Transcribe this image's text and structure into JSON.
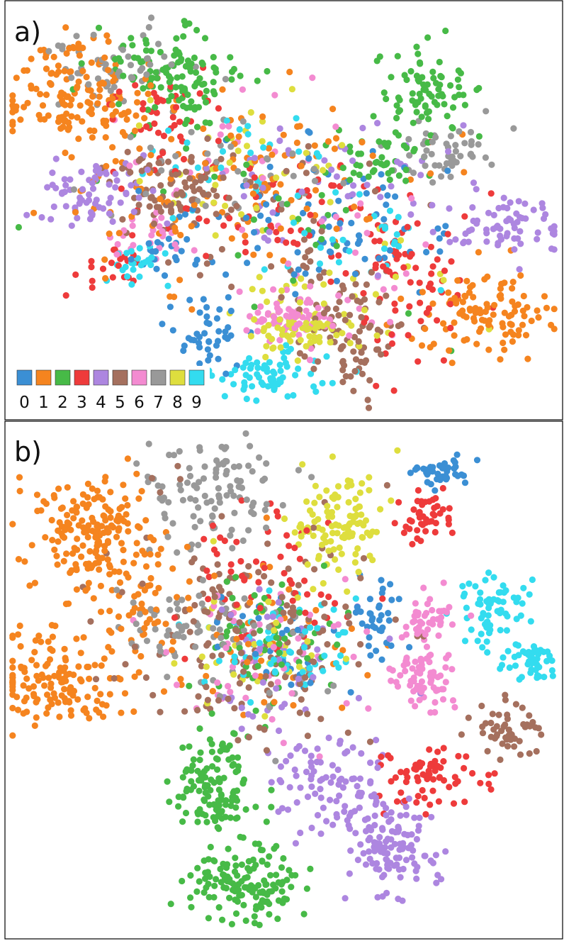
{
  "figure": {
    "panel_labels": [
      "a)",
      "b)"
    ],
    "legend": {
      "entries": [
        "0",
        "1",
        "2",
        "3",
        "4",
        "5",
        "6",
        "7",
        "8",
        "9"
      ],
      "colors": [
        "#3b8fd4",
        "#f5841f",
        "#47ba47",
        "#ee3b3b",
        "#ad86e0",
        "#a5705e",
        "#f38bd1",
        "#999999",
        "#dede3e",
        "#33dcef"
      ]
    }
  },
  "chart_data": [
    {
      "type": "scatter",
      "panel": "a)",
      "title": "",
      "xlabel": "",
      "ylabel": "",
      "axes_visible": false,
      "grid": false,
      "legend_placement": "bottom-left",
      "point_count_approx": 2000,
      "xlim": [
        0,
        100
      ],
      "ylim": [
        0,
        100
      ],
      "series": [
        {
          "name": "0",
          "color": "#3b8fd4",
          "clusters": [
            {
              "cx": 36,
              "cy": 17,
              "sx": 4,
              "sy": 6,
              "n": 45
            },
            {
              "cx": 62,
              "cy": 40,
              "sx": 8,
              "sy": 7,
              "n": 45
            },
            {
              "cx": 28,
              "cy": 40,
              "sx": 4,
              "sy": 3,
              "n": 20
            },
            {
              "cx": 50,
              "cy": 55,
              "sx": 15,
              "sy": 10,
              "n": 40
            }
          ]
        },
        {
          "name": "1",
          "color": "#f5841f",
          "clusters": [
            {
              "cx": 12,
              "cy": 78,
              "sx": 7,
              "sy": 6,
              "n": 150
            },
            {
              "cx": 86,
              "cy": 25,
              "sx": 6,
              "sy": 5,
              "n": 110
            },
            {
              "cx": 48,
              "cy": 58,
              "sx": 15,
              "sy": 10,
              "n": 80
            },
            {
              "cx": 30,
              "cy": 48,
              "sx": 12,
              "sy": 12,
              "n": 40
            }
          ]
        },
        {
          "name": "2",
          "color": "#47ba47",
          "clusters": [
            {
              "cx": 30,
              "cy": 82,
              "sx": 6,
              "sy": 6,
              "n": 120
            },
            {
              "cx": 76,
              "cy": 78,
              "sx": 4,
              "sy": 6,
              "n": 80
            },
            {
              "cx": 69,
              "cy": 62,
              "sx": 4,
              "sy": 4,
              "n": 40
            },
            {
              "cx": 50,
              "cy": 52,
              "sx": 15,
              "sy": 12,
              "n": 30
            }
          ]
        },
        {
          "name": "3",
          "color": "#ee3b3b",
          "clusters": [
            {
              "cx": 72,
              "cy": 34,
              "sx": 7,
              "sy": 10,
              "n": 80
            },
            {
              "cx": 44,
              "cy": 52,
              "sx": 12,
              "sy": 8,
              "n": 60
            },
            {
              "cx": 28,
              "cy": 73,
              "sx": 6,
              "sy": 6,
              "n": 40
            },
            {
              "cx": 17,
              "cy": 35,
              "sx": 4,
              "sy": 3,
              "n": 20
            }
          ]
        },
        {
          "name": "4",
          "color": "#ad86e0",
          "clusters": [
            {
              "cx": 14,
              "cy": 55,
              "sx": 5,
              "sy": 5,
              "n": 70
            },
            {
              "cx": 91,
              "cy": 46,
              "sx": 6,
              "sy": 4,
              "n": 70
            },
            {
              "cx": 57,
              "cy": 58,
              "sx": 14,
              "sy": 8,
              "n": 50
            }
          ]
        },
        {
          "name": "5",
          "color": "#a5705e",
          "clusters": [
            {
              "cx": 30,
              "cy": 56,
              "sx": 6,
              "sy": 5,
              "n": 80
            },
            {
              "cx": 63,
              "cy": 18,
              "sx": 4,
              "sy": 5,
              "n": 60
            },
            {
              "cx": 58,
              "cy": 30,
              "sx": 6,
              "sy": 6,
              "n": 40
            },
            {
              "cx": 48,
              "cy": 50,
              "sx": 12,
              "sy": 8,
              "n": 40
            }
          ]
        },
        {
          "name": "6",
          "color": "#f38bd1",
          "clusters": [
            {
              "cx": 52,
              "cy": 24,
              "sx": 5,
              "sy": 3,
              "n": 80
            },
            {
              "cx": 26,
              "cy": 44,
              "sx": 4,
              "sy": 4,
              "n": 30
            },
            {
              "cx": 40,
              "cy": 65,
              "sx": 10,
              "sy": 8,
              "n": 20
            },
            {
              "cx": 62,
              "cy": 40,
              "sx": 10,
              "sy": 8,
              "n": 20
            }
          ]
        },
        {
          "name": "7",
          "color": "#999999",
          "clusters": [
            {
              "cx": 18,
              "cy": 85,
              "sx": 6,
              "sy": 4,
              "n": 60
            },
            {
              "cx": 78,
              "cy": 64,
              "sx": 5,
              "sy": 4,
              "n": 50
            },
            {
              "cx": 40,
              "cy": 62,
              "sx": 12,
              "sy": 8,
              "n": 40
            }
          ]
        },
        {
          "name": "8",
          "color": "#dede3e",
          "clusters": [
            {
              "cx": 54,
              "cy": 20,
              "sx": 5,
              "sy": 3,
              "n": 70
            },
            {
              "cx": 40,
              "cy": 60,
              "sx": 10,
              "sy": 8,
              "n": 40
            },
            {
              "cx": 60,
              "cy": 30,
              "sx": 10,
              "sy": 6,
              "n": 30
            }
          ]
        },
        {
          "name": "9",
          "color": "#33dcef",
          "clusters": [
            {
              "cx": 47,
              "cy": 10,
              "sx": 5,
              "sy": 3,
              "n": 70
            },
            {
              "cx": 24,
              "cy": 36,
              "sx": 3,
              "sy": 3,
              "n": 25
            },
            {
              "cx": 40,
              "cy": 62,
              "sx": 10,
              "sy": 8,
              "n": 30
            },
            {
              "cx": 62,
              "cy": 42,
              "sx": 8,
              "sy": 6,
              "n": 25
            }
          ]
        }
      ]
    },
    {
      "type": "scatter",
      "panel": "b)",
      "title": "",
      "xlabel": "",
      "ylabel": "",
      "axes_visible": false,
      "grid": false,
      "point_count_approx": 2000,
      "xlim": [
        0,
        100
      ],
      "ylim": [
        0,
        100
      ],
      "series": [
        {
          "name": "0",
          "color": "#3b8fd4",
          "clusters": [
            {
              "cx": 79,
              "cy": 91,
              "sx": 2.5,
              "sy": 1.5,
              "n": 40
            },
            {
              "cx": 67,
              "cy": 62,
              "sx": 2,
              "sy": 4,
              "n": 35
            },
            {
              "cx": 50,
              "cy": 58,
              "sx": 6,
              "sy": 5,
              "n": 30
            }
          ]
        },
        {
          "name": "1",
          "color": "#f5841f",
          "clusters": [
            {
              "cx": 15,
              "cy": 79,
              "sx": 6,
              "sy": 6,
              "n": 180
            },
            {
              "cx": 9,
              "cy": 50,
              "sx": 6,
              "sy": 5,
              "n": 140
            },
            {
              "cx": 24,
              "cy": 64,
              "sx": 4,
              "sy": 6,
              "n": 50
            },
            {
              "cx": 45,
              "cy": 58,
              "sx": 10,
              "sy": 10,
              "n": 40
            }
          ]
        },
        {
          "name": "2",
          "color": "#47ba47",
          "clusters": [
            {
              "cx": 43,
              "cy": 10,
              "sx": 5,
              "sy": 3.5,
              "n": 130
            },
            {
              "cx": 37,
              "cy": 28,
              "sx": 4,
              "sy": 6,
              "n": 130
            },
            {
              "cx": 47,
              "cy": 58,
              "sx": 8,
              "sy": 7,
              "n": 60
            }
          ]
        },
        {
          "name": "3",
          "color": "#ee3b3b",
          "clusters": [
            {
              "cx": 77,
              "cy": 31,
              "sx": 5,
              "sy": 3.5,
              "n": 70
            },
            {
              "cx": 76,
              "cy": 82,
              "sx": 3,
              "sy": 3,
              "n": 45
            },
            {
              "cx": 47,
              "cy": 70,
              "sx": 8,
              "sy": 8,
              "n": 60
            }
          ]
        },
        {
          "name": "4",
          "color": "#ad86e0",
          "clusters": [
            {
              "cx": 69,
              "cy": 18,
              "sx": 4,
              "sy": 5,
              "n": 120
            },
            {
              "cx": 57,
              "cy": 30,
              "sx": 5,
              "sy": 6,
              "n": 90
            },
            {
              "cx": 50,
              "cy": 55,
              "sx": 8,
              "sy": 8,
              "n": 40
            }
          ]
        },
        {
          "name": "5",
          "color": "#a5705e",
          "clusters": [
            {
              "cx": 90,
              "cy": 41,
              "sx": 3.5,
              "sy": 3,
              "n": 50
            },
            {
              "cx": 44,
              "cy": 58,
              "sx": 12,
              "sy": 10,
              "n": 170
            }
          ]
        },
        {
          "name": "6",
          "color": "#f38bd1",
          "clusters": [
            {
              "cx": 75,
              "cy": 51,
              "sx": 3,
              "sy": 3,
              "n": 70
            },
            {
              "cx": 77,
              "cy": 63,
              "sx": 3,
              "sy": 2.5,
              "n": 40
            },
            {
              "cx": 45,
              "cy": 55,
              "sx": 10,
              "sy": 8,
              "n": 50
            }
          ]
        },
        {
          "name": "7",
          "color": "#999999",
          "clusters": [
            {
              "cx": 37,
              "cy": 87,
              "sx": 6,
              "sy": 6,
              "n": 100
            },
            {
              "cx": 30,
              "cy": 62,
              "sx": 5,
              "sy": 5,
              "n": 50
            },
            {
              "cx": 45,
              "cy": 58,
              "sx": 8,
              "sy": 8,
              "n": 40
            }
          ]
        },
        {
          "name": "8",
          "color": "#dede3e",
          "clusters": [
            {
              "cx": 60,
              "cy": 82,
              "sx": 4,
              "sy": 5,
              "n": 110
            },
            {
              "cx": 45,
              "cy": 58,
              "sx": 8,
              "sy": 8,
              "n": 40
            }
          ]
        },
        {
          "name": "9",
          "color": "#33dcef",
          "clusters": [
            {
              "cx": 88,
              "cy": 64,
              "sx": 3,
              "sy": 4,
              "n": 70
            },
            {
              "cx": 95,
              "cy": 54,
              "sx": 2.5,
              "sy": 2.5,
              "n": 45
            },
            {
              "cx": 50,
              "cy": 57,
              "sx": 7,
              "sy": 5,
              "n": 60
            }
          ]
        }
      ]
    }
  ]
}
